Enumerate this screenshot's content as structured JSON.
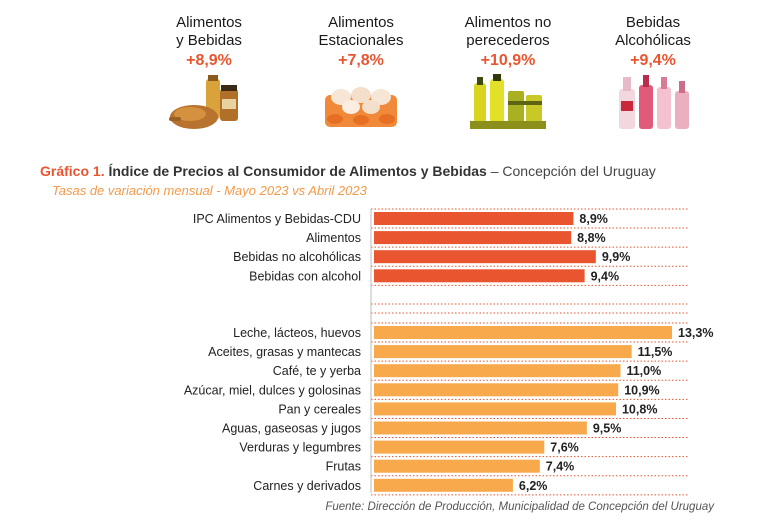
{
  "header": {
    "items": [
      {
        "label": "Alimentos\ny Bebidas",
        "value": "+8,9%",
        "icon": "roast-chicken-and-jars-icon"
      },
      {
        "label": "Alimentos\nEstacionales",
        "value": "+7,8%",
        "icon": "eggs-in-carton-icon"
      },
      {
        "label": "Alimentos no\nperecederos",
        "value": "+10,9%",
        "icon": "canned-goods-and-oil-bottles-icon"
      },
      {
        "label": "Bebidas\nAlcohólicas",
        "value": "+9,4%",
        "icon": "liquor-bottles-icon"
      }
    ]
  },
  "chart": {
    "title_prefix": "Gráfico 1.",
    "title_main": "Índice de Precios al Consumidor de Alimentos y Bebidas",
    "title_location": "– Concepción del Uruguay",
    "subtitle": "Tasas de variación mensual - Mayo 2023 vs Abril 2023",
    "source": "Fuente: Dirección de Producción, Municipalidad de Concepción del Uruguay"
  },
  "colors": {
    "group1": "#e8552f",
    "group2": "#f7a94c",
    "accent": "#e8552f",
    "gridline": "#e8552f"
  },
  "chart_data": {
    "type": "bar",
    "orientation": "horizontal",
    "xlim": [
      0,
      13.3
    ],
    "grid": "dotted horizontal separators",
    "groups": [
      {
        "categories": [
          "IPC Alimentos y Bebidas-CDU",
          "Alimentos",
          "Bebidas no alcohólicas",
          "Bebidas con alcohol"
        ],
        "values": [
          8.9,
          8.8,
          9.9,
          9.4
        ],
        "labels": [
          "8,9%",
          "8,8%",
          "9,9%",
          "9,4%"
        ]
      },
      {
        "categories": [
          "Leche, lácteos, huevos",
          "Aceites, grasas y mantecas",
          "Café, te y yerba",
          "Azúcar, miel, dulces y golosinas",
          "Pan y cereales",
          "Aguas, gaseosas y jugos",
          "Verduras y legumbres",
          "Frutas",
          "Carnes y derivados"
        ],
        "values": [
          13.3,
          11.5,
          11.0,
          10.9,
          10.8,
          9.5,
          7.6,
          7.4,
          6.2
        ],
        "labels": [
          "13,3%",
          "11,5%",
          "11,0%",
          "10,9%",
          "10,8%",
          "9,5%",
          "7,6%",
          "7,4%",
          "6,2%"
        ]
      }
    ]
  }
}
